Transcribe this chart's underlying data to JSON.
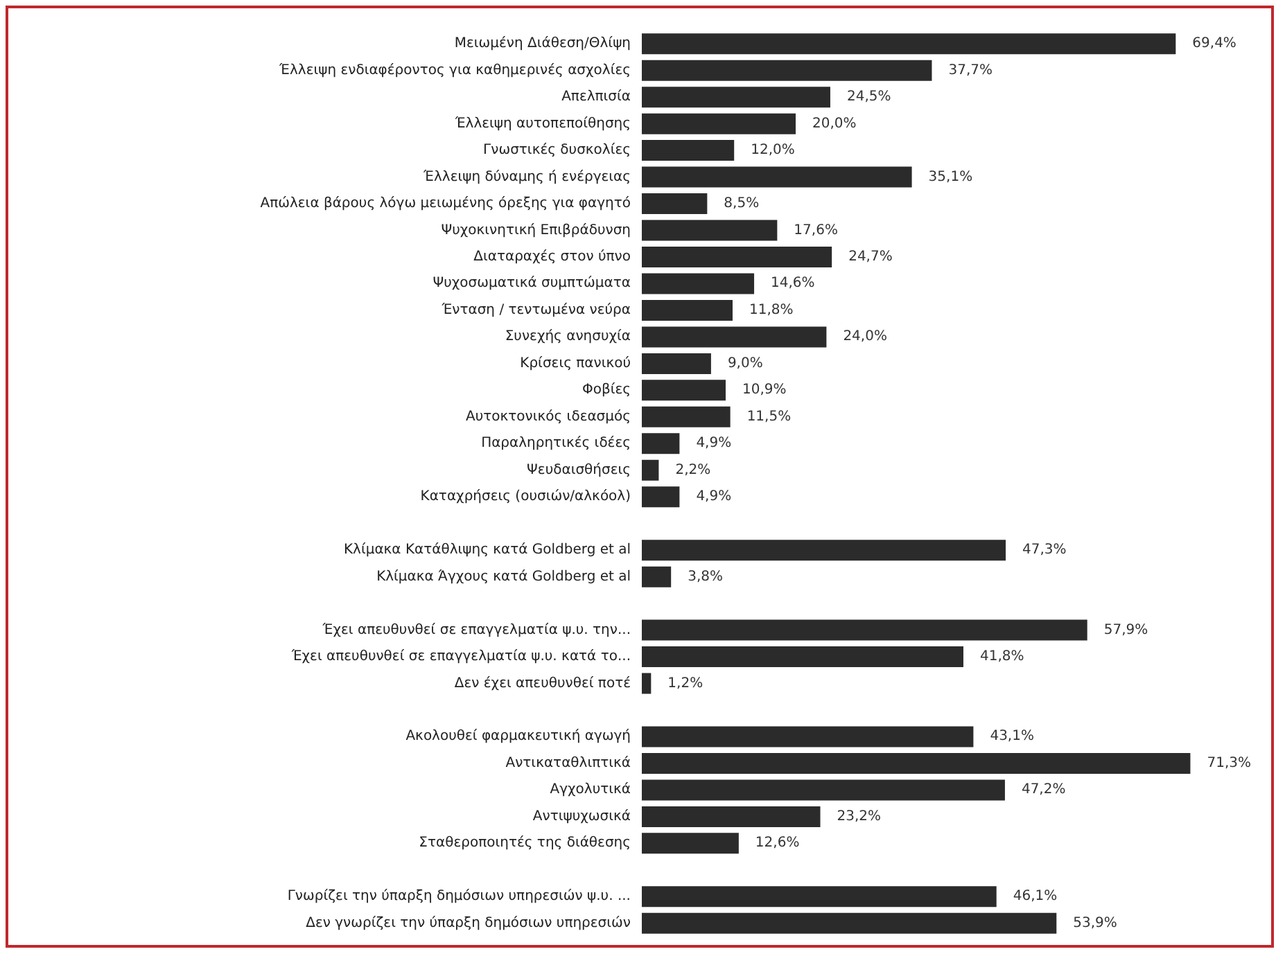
{
  "chart_data": {
    "type": "bar",
    "orientation": "horizontal",
    "color": "#2b2b2b",
    "categories": [
      "Μειωμένη Διάθεση/Θλίψη",
      "Έλλειψη ενδιαφέροντος για καθημερινές ασχολίες",
      "Απελπισία",
      "Έλλειψη αυτοπεποίθησης",
      "Γνωστικές δυσκολίες",
      "Έλλειψη δύναμης ή ενέργειας",
      "Απώλεια βάρους λόγω μειωμένης όρεξης για φαγητό",
      "Ψυχοκινητική Επιβράδυνση",
      "Διαταραχές στον ύπνο",
      "Ψυχοσωματικά συμπτώματα",
      "Ένταση / τεντωμένα νεύρα",
      "Συνεχής ανησυχία",
      "Κρίσεις πανικού",
      "Φοβίες",
      "Αυτοκτονικός ιδεασμός",
      "Παραληρητικές ιδέες",
      "Ψευδαισθήσεις",
      "Καταχρήσεις (ουσιών/αλκόολ)",
      null,
      "Κλίμακα Κατάθλιψης κατά Goldberg et al",
      "Κλίμακα Άγχους κατά Goldberg et al",
      null,
      "Έχει απευθυνθεί σε επαγγελματία ψ.υ. την...",
      "Έχει απευθυνθεί σε επαγγελματία ψ.υ. κατά το...",
      "Δεν έχει απευθυνθεί ποτέ",
      null,
      "Ακολουθεί φαρμακευτική αγωγή",
      "Αντικαταθλιπτικά",
      "Αγχολυτικά",
      "Αντιψυχωσικά",
      "Σταθεροποιητές της διάθεσης",
      null,
      "Γνωρίζει την ύπαρξη δημόσιων υπηρεσιών ψ.υ. ...",
      "Δεν γνωρίζει την ύπαρξη δημόσιων υπηρεσιών"
    ],
    "values": [
      69.4,
      37.7,
      24.5,
      20.0,
      12.0,
      35.1,
      8.5,
      17.6,
      24.7,
      14.6,
      11.8,
      24.0,
      9.0,
      10.9,
      11.5,
      4.9,
      2.2,
      4.9,
      null,
      47.3,
      3.8,
      null,
      57.9,
      41.8,
      1.2,
      null,
      43.1,
      71.3,
      47.2,
      23.2,
      12.6,
      null,
      46.1,
      53.9
    ],
    "value_labels": [
      "69,4%",
      "37,7%",
      "24,5%",
      "20,0%",
      "12,0%",
      "35,1%",
      "8,5%",
      "17,6%",
      "24,7%",
      "14,6%",
      "11,8%",
      "24,0%",
      "9,0%",
      "10,9%",
      "11,5%",
      "4,9%",
      "2,2%",
      "4,9%",
      null,
      "47,3%",
      "3,8%",
      null,
      "57,9%",
      "41,8%",
      "1,2%",
      null,
      "43,1%",
      "71,3%",
      "47,2%",
      "23,2%",
      "12,6%",
      null,
      "46,1%",
      "53,9%"
    ]
  }
}
